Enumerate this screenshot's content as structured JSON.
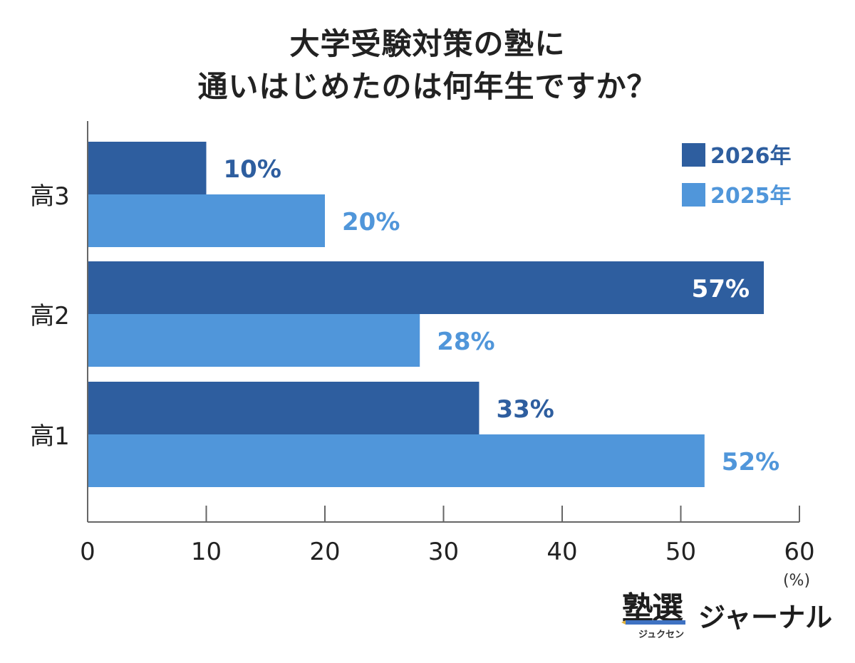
{
  "chart_data": {
    "type": "bar",
    "orientation": "horizontal",
    "title_lines": [
      "大学受験対策の塾に",
      "通いはじめたのは何年生ですか？"
    ],
    "categories": [
      "高3",
      "高2",
      "高1"
    ],
    "series": [
      {
        "name": "2026年",
        "color": "#2e5e9f",
        "values": [
          10,
          57,
          33
        ],
        "labels": [
          "10%",
          "57%",
          "33%"
        ]
      },
      {
        "name": "2025年",
        "color": "#5096da",
        "values": [
          20,
          28,
          52
        ],
        "labels": [
          "20%",
          "28%",
          "52%"
        ]
      }
    ],
    "x_ticks": [
      0,
      10,
      20,
      30,
      40,
      50,
      60
    ],
    "xlim": [
      0,
      60
    ],
    "unit_label": "(%)",
    "legend_position": "top-right",
    "grid": false,
    "label_colors": {
      "inside": "#ffffff"
    }
  },
  "logo": {
    "main": "塾選",
    "kana": "ジュクセン",
    "journal": "ジャーナル"
  }
}
